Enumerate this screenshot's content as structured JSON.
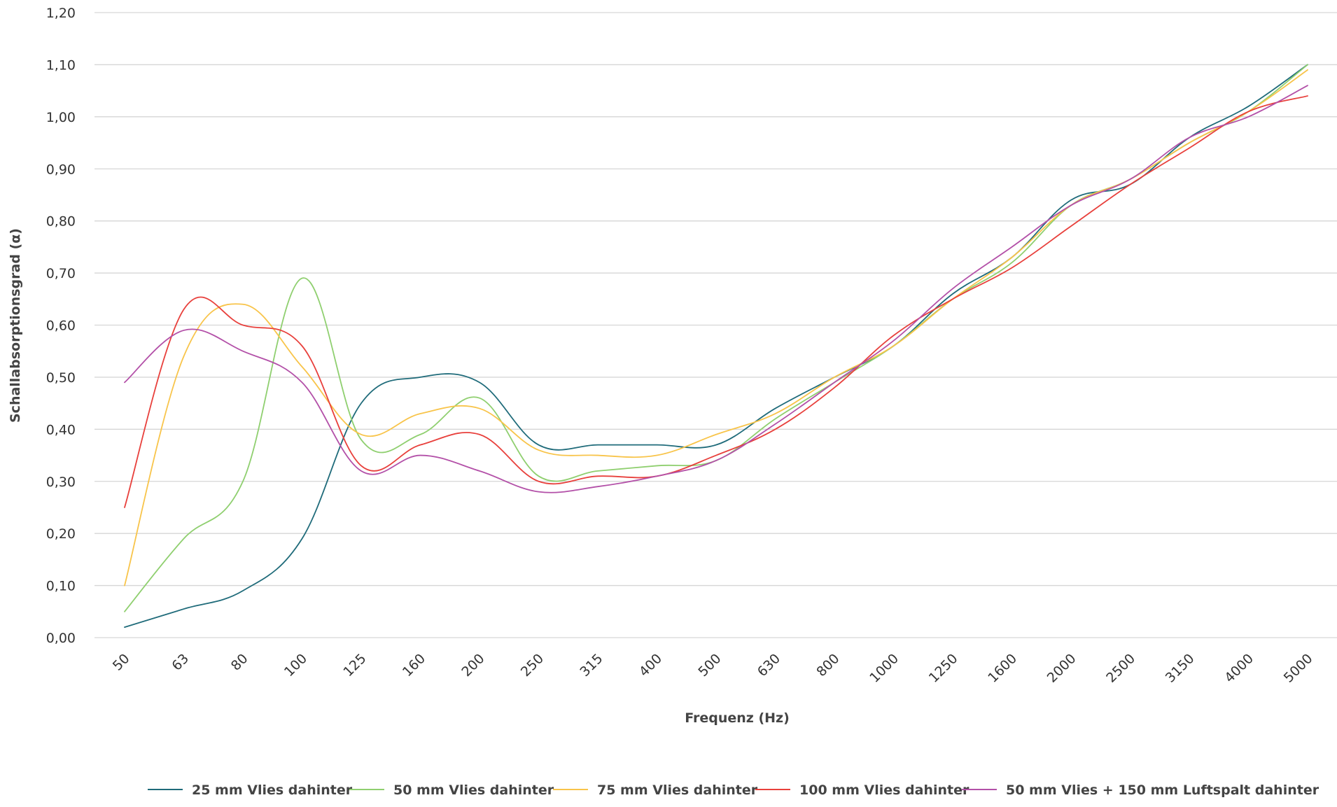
{
  "chart_data": {
    "type": "line",
    "title": "",
    "xlabel": "Frequenz (Hz)",
    "ylabel": "Schallabsorptionsgrad (α)",
    "categories": [
      "50",
      "63",
      "80",
      "100",
      "125",
      "160",
      "200",
      "250",
      "315",
      "400",
      "500",
      "630",
      "800",
      "1000",
      "1250",
      "1600",
      "2000",
      "2500",
      "3150",
      "4000",
      "5000"
    ],
    "ylim": [
      0,
      1.2
    ],
    "yticks": [
      "0,00",
      "0,10",
      "0,20",
      "0,30",
      "0,40",
      "0,50",
      "0,60",
      "0,70",
      "0,80",
      "0,90",
      "1,00",
      "1,10",
      "1,20"
    ],
    "grid": true,
    "legend_position": "bottom",
    "series": [
      {
        "name": "25 mm Vlies dahinter",
        "color": "#1f6b7a",
        "values": [
          0.02,
          0.055,
          0.09,
          0.19,
          0.45,
          0.5,
          0.49,
          0.37,
          0.37,
          0.37,
          0.37,
          0.44,
          0.5,
          0.56,
          0.66,
          0.73,
          0.84,
          0.87,
          0.96,
          1.02,
          1.1
        ]
      },
      {
        "name": "50 mm Vlies dahinter",
        "color": "#8fcf6f",
        "values": [
          0.05,
          0.19,
          0.3,
          0.69,
          0.38,
          0.39,
          0.46,
          0.31,
          0.32,
          0.33,
          0.34,
          0.42,
          0.49,
          0.56,
          0.65,
          0.72,
          0.83,
          0.88,
          0.95,
          1.01,
          1.1
        ]
      },
      {
        "name": "75 mm Vlies dahinter",
        "color": "#f8c44a",
        "values": [
          0.1,
          0.54,
          0.64,
          0.52,
          0.39,
          0.43,
          0.44,
          0.36,
          0.35,
          0.35,
          0.39,
          0.43,
          0.5,
          0.56,
          0.65,
          0.73,
          0.83,
          0.88,
          0.95,
          1.01,
          1.09
        ]
      },
      {
        "name": "100 mm Vlies dahinter",
        "color": "#e8403c",
        "values": [
          0.25,
          0.63,
          0.6,
          0.56,
          0.33,
          0.37,
          0.39,
          0.3,
          0.31,
          0.31,
          0.35,
          0.4,
          0.48,
          0.58,
          0.65,
          0.71,
          0.79,
          0.87,
          0.94,
          1.01,
          1.04
        ]
      },
      {
        "name": "50 mm Vlies  + 150 mm Luftspalt dahinter",
        "color": "#b350a8",
        "values": [
          0.49,
          0.59,
          0.55,
          0.49,
          0.32,
          0.35,
          0.32,
          0.28,
          0.29,
          0.31,
          0.34,
          0.41,
          0.49,
          0.57,
          0.67,
          0.75,
          0.83,
          0.88,
          0.96,
          1.0,
          1.06
        ]
      }
    ]
  }
}
